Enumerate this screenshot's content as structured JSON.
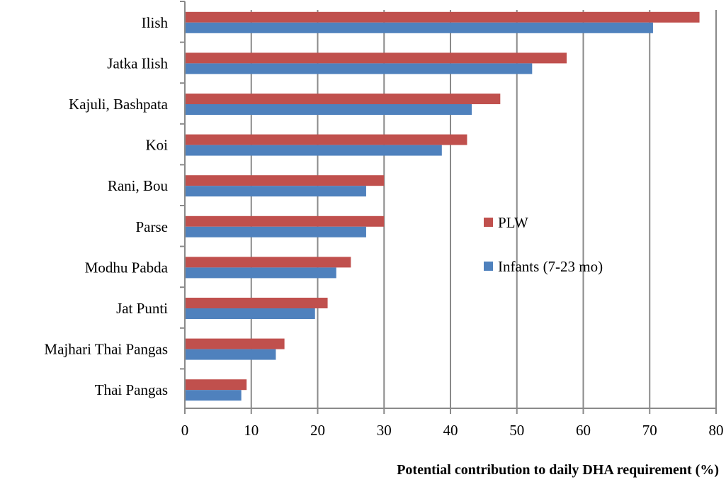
{
  "chart_data": {
    "type": "bar",
    "orientation": "horizontal",
    "categories": [
      "Ilish",
      "Jatka Ilish",
      "Kajuli, Bashpata",
      "Koi",
      "Rani, Bou",
      "Parse",
      "Modhu Pabda",
      "Jat Punti",
      "Majhari Thai Pangas",
      "Thai Pangas"
    ],
    "series": [
      {
        "name": "PLW",
        "color": "#c0504d",
        "values": [
          77.5,
          57.5,
          47.5,
          42.5,
          30,
          30,
          25,
          21.5,
          15,
          9.3
        ]
      },
      {
        "name": "Infants (7-23 mo)",
        "color": "#4f81bd",
        "values": [
          70.5,
          52.3,
          43.2,
          38.7,
          27.3,
          27.3,
          22.8,
          19.6,
          13.7,
          8.5
        ]
      }
    ],
    "xlabel": "Potential contribution to daily DHA requirement (%)",
    "ylabel": "",
    "xlim": [
      0,
      80
    ],
    "xticks": [
      "0",
      "10",
      "20",
      "30",
      "40",
      "50",
      "60",
      "70",
      "80"
    ],
    "grid": true,
    "legend_position": "right-middle"
  }
}
